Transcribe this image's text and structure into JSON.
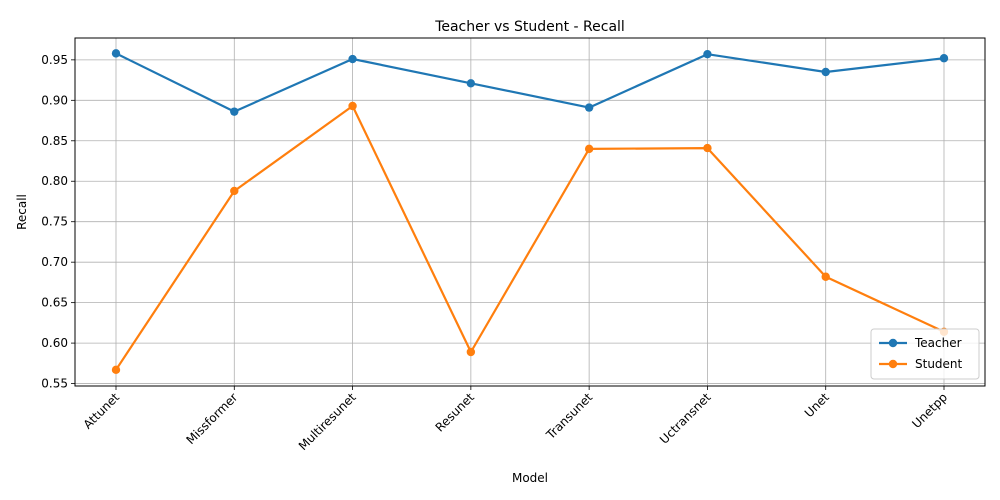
{
  "chart_data": {
    "type": "line",
    "title": "Teacher vs Student - Recall",
    "xlabel": "Model",
    "ylabel": "Recall",
    "categories": [
      "Attunet",
      "Missformer",
      "Multiresunet",
      "Resunet",
      "Transunet",
      "Uctransnet",
      "Unet",
      "Unetpp"
    ],
    "series": [
      {
        "name": "Teacher",
        "color": "#1f77b4",
        "values": [
          0.958,
          0.886,
          0.951,
          0.921,
          0.891,
          0.957,
          0.935,
          0.952
        ]
      },
      {
        "name": "Student",
        "color": "#ff7f0e",
        "values": [
          0.567,
          0.788,
          0.893,
          0.589,
          0.84,
          0.841,
          0.682,
          0.614
        ]
      }
    ],
    "ylim": [
      0.547,
      0.977
    ],
    "yticks": [
      "0.55",
      "0.60",
      "0.65",
      "0.70",
      "0.75",
      "0.80",
      "0.85",
      "0.90",
      "0.95"
    ],
    "grid": true,
    "legend_position": "lower-right",
    "marker": "circle"
  }
}
